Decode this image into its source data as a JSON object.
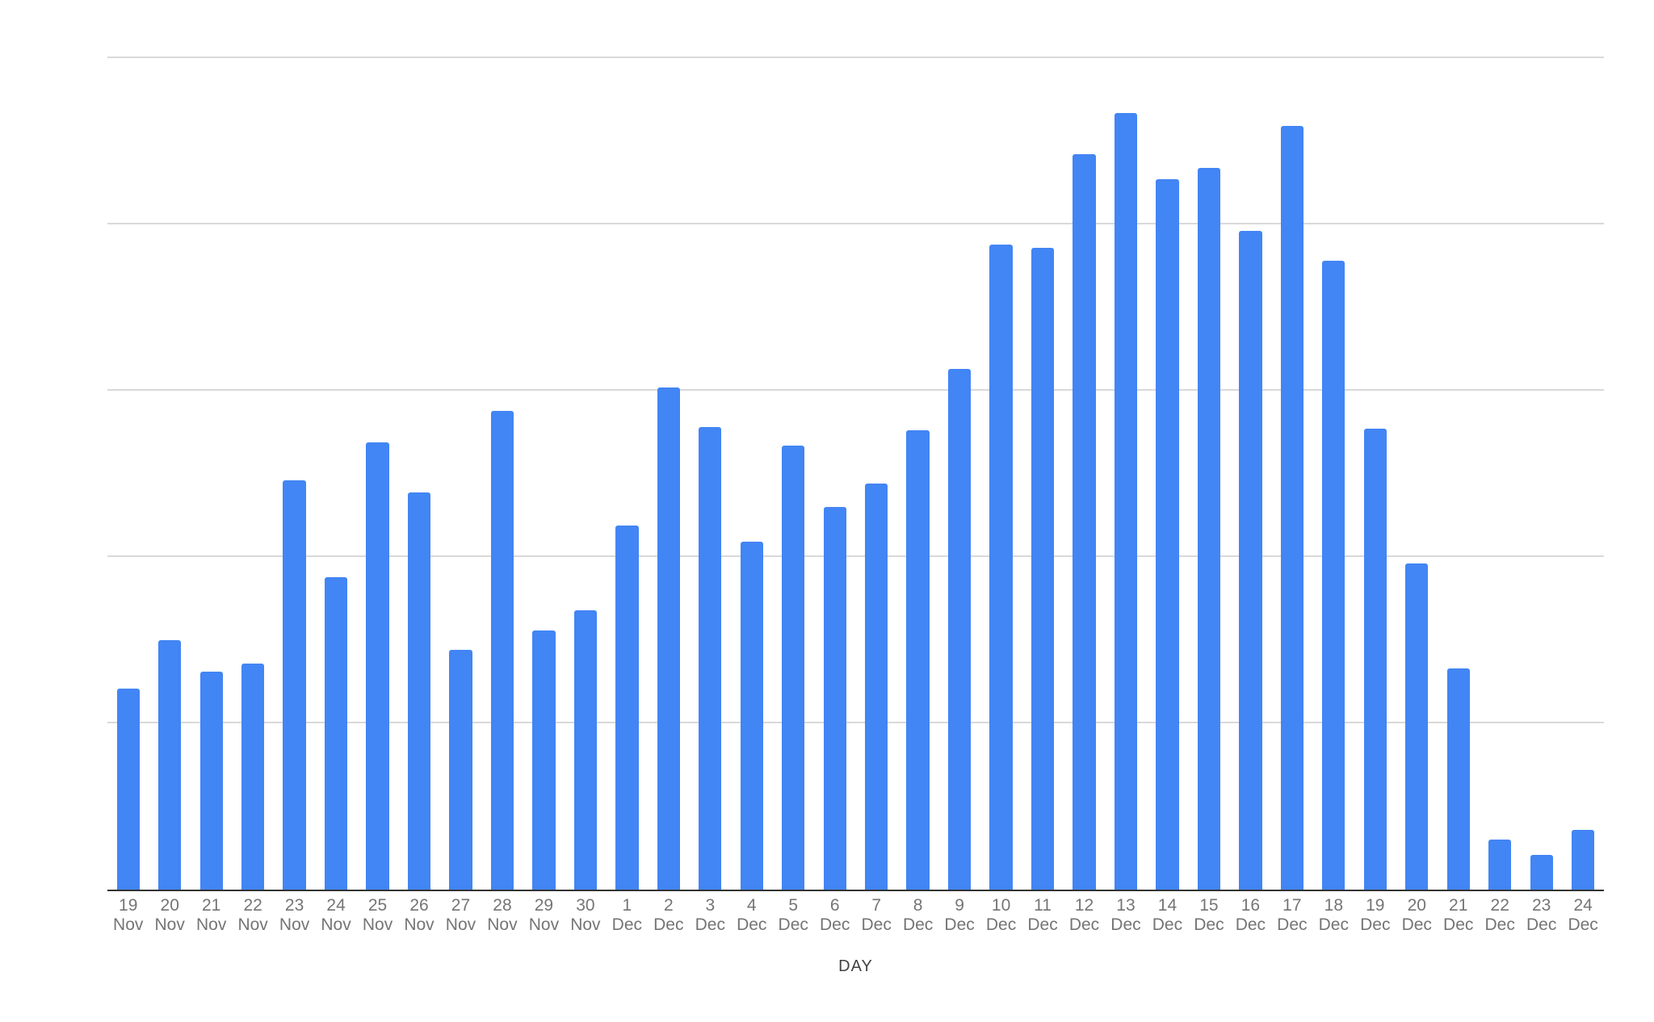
{
  "chart_data": {
    "type": "bar",
    "title": "",
    "xlabel": "DAY",
    "ylabel": "",
    "legend_position": "none",
    "grid_on": true,
    "y_axis": {
      "tick_labels_visible": false,
      "gridline_values": [
        100,
        200,
        300,
        400,
        500
      ],
      "note": "y-axis gridlines are unlabeled in the image; values below are relative units estimated against the 5 evenly spaced gridlines (gridline spacing = 100)"
    },
    "ylim": [
      0,
      515
    ],
    "categories": [
      {
        "day": "19",
        "month": "Nov"
      },
      {
        "day": "20",
        "month": "Nov"
      },
      {
        "day": "21",
        "month": "Nov"
      },
      {
        "day": "22",
        "month": "Nov"
      },
      {
        "day": "23",
        "month": "Nov"
      },
      {
        "day": "24",
        "month": "Nov"
      },
      {
        "day": "25",
        "month": "Nov"
      },
      {
        "day": "26",
        "month": "Nov"
      },
      {
        "day": "27",
        "month": "Nov"
      },
      {
        "day": "28",
        "month": "Nov"
      },
      {
        "day": "29",
        "month": "Nov"
      },
      {
        "day": "30",
        "month": "Nov"
      },
      {
        "day": "1",
        "month": "Dec"
      },
      {
        "day": "2",
        "month": "Dec"
      },
      {
        "day": "3",
        "month": "Dec"
      },
      {
        "day": "4",
        "month": "Dec"
      },
      {
        "day": "5",
        "month": "Dec"
      },
      {
        "day": "6",
        "month": "Dec"
      },
      {
        "day": "7",
        "month": "Dec"
      },
      {
        "day": "8",
        "month": "Dec"
      },
      {
        "day": "9",
        "month": "Dec"
      },
      {
        "day": "10",
        "month": "Dec"
      },
      {
        "day": "11",
        "month": "Dec"
      },
      {
        "day": "12",
        "month": "Dec"
      },
      {
        "day": "13",
        "month": "Dec"
      },
      {
        "day": "14",
        "month": "Dec"
      },
      {
        "day": "15",
        "month": "Dec"
      },
      {
        "day": "16",
        "month": "Dec"
      },
      {
        "day": "17",
        "month": "Dec"
      },
      {
        "day": "18",
        "month": "Dec"
      },
      {
        "day": "19",
        "month": "Dec"
      },
      {
        "day": "20",
        "month": "Dec"
      },
      {
        "day": "21",
        "month": "Dec"
      },
      {
        "day": "22",
        "month": "Dec"
      },
      {
        "day": "23",
        "month": "Dec"
      },
      {
        "day": "24",
        "month": "Dec"
      }
    ],
    "values": [
      121,
      150,
      131,
      136,
      246,
      188,
      269,
      239,
      144,
      288,
      156,
      168,
      219,
      302,
      278,
      209,
      267,
      230,
      244,
      276,
      313,
      388,
      386,
      442,
      467,
      427,
      434,
      396,
      459,
      378,
      277,
      196,
      133,
      30,
      21,
      36
    ]
  },
  "colors": {
    "background": "#ffffff",
    "bar": "#4285f4",
    "gridline": "#d9d9d9",
    "axis_line": "#333333",
    "tick_label": "#757575",
    "axis_title": "#424242"
  }
}
